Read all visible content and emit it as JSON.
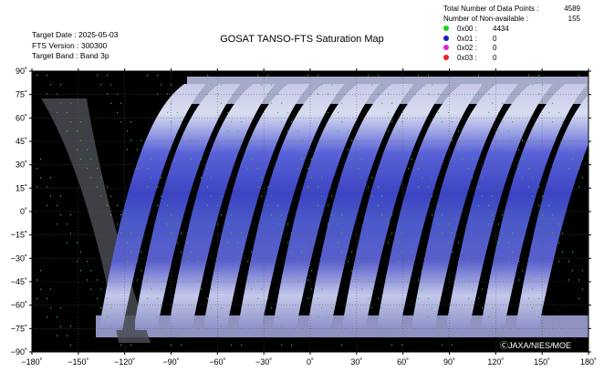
{
  "title": "GOSAT TANSO-FTS Saturation Map",
  "meta": {
    "target_date": "Target Date : 2025-05-03",
    "fts_version": "FTS Version : 300300",
    "target_band": "Target Band : Band 3p"
  },
  "stats": {
    "total_label": "Total Number of Data Points :",
    "total_value": "4589",
    "nonavail_label": "Number of Non-available :",
    "nonavail_value": "155"
  },
  "legend": [
    {
      "label": "0x00 :",
      "value": "4434",
      "color": "#22cc22"
    },
    {
      "label": "0x01 :",
      "value": "0",
      "color": "#1a1acc"
    },
    {
      "label": "0x02 :",
      "value": "0",
      "color": "#dd22dd"
    },
    {
      "label": "0x03 :",
      "value": "0",
      "color": "#ee2222"
    }
  ],
  "axes": {
    "lat_labels": [
      "90˚",
      "75˚",
      "60˚",
      "45˚",
      "30˚",
      "15˚",
      "0˚",
      "−15˚",
      "−30˚",
      "−45˚",
      "−60˚",
      "−75˚",
      "−90˚"
    ],
    "lon_labels": [
      "−180˚",
      "−150˚",
      "−120˚",
      "−90˚",
      "−60˚",
      "−30˚",
      "0˚",
      "30˚",
      "60˚",
      "90˚",
      "120˚",
      "150˚",
      "180˚"
    ],
    "lat_range": [
      -90,
      90
    ],
    "lon_range": [
      -180,
      180
    ],
    "lat_step": 15,
    "lon_step": 30
  },
  "copyright": "ⒸJAXA/NIES/MOE"
}
